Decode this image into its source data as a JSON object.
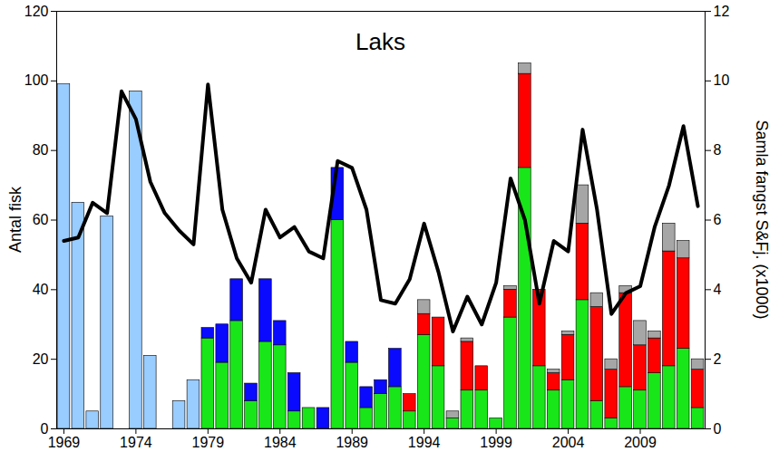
{
  "chart_data": {
    "type": "bar",
    "title": "Laks",
    "stacked": true,
    "ylabel": "Antal fisk",
    "y2label": "Samla fangst S&Fj. (x1000)",
    "x": [
      1969,
      1970,
      1971,
      1972,
      1973,
      1974,
      1975,
      1976,
      1977,
      1978,
      1979,
      1980,
      1981,
      1982,
      1983,
      1984,
      1985,
      1986,
      1987,
      1988,
      1989,
      1990,
      1991,
      1992,
      1993,
      1994,
      1995,
      1996,
      1997,
      1998,
      1999,
      2000,
      2001,
      2002,
      2003,
      2004,
      2005,
      2006,
      2007,
      2008,
      2009,
      2010,
      2011,
      2012,
      2013
    ],
    "xlim": [
      1968.5,
      2013.5
    ],
    "xticks": [
      1969,
      1974,
      1979,
      1984,
      1989,
      1994,
      1999,
      2004,
      2009
    ],
    "ylim": [
      0,
      120
    ],
    "yticks": [
      0,
      20,
      40,
      60,
      80,
      100,
      120
    ],
    "y2lim": [
      0,
      12
    ],
    "y2ticks": [
      0,
      2,
      4,
      6,
      8,
      10,
      12
    ],
    "series": [
      {
        "type": "bar",
        "color": "#99ccff",
        "values": [
          99,
          65,
          5,
          61,
          0,
          97,
          21,
          0,
          8,
          14,
          0,
          0,
          0,
          0,
          0,
          0,
          0,
          0,
          0,
          0,
          0,
          0,
          0,
          0,
          0,
          0,
          0,
          0,
          0,
          0,
          0,
          0,
          0,
          0,
          0,
          0,
          0,
          0,
          0,
          0,
          0,
          0,
          0,
          0,
          0
        ]
      },
      {
        "type": "bar",
        "color": "#19e619",
        "values": [
          0,
          0,
          0,
          0,
          0,
          0,
          0,
          0,
          0,
          0,
          26,
          19,
          31,
          8,
          25,
          24,
          5,
          6,
          0,
          60,
          19,
          6,
          10,
          12,
          5,
          27,
          18,
          3,
          11,
          11,
          3,
          32,
          75,
          18,
          11,
          14,
          37,
          8,
          3,
          12,
          11,
          16,
          18,
          23,
          6
        ]
      },
      {
        "type": "bar",
        "color": "#0a0aff",
        "values": [
          0,
          0,
          0,
          0,
          0,
          0,
          0,
          0,
          0,
          0,
          3,
          11,
          12,
          5,
          18,
          7,
          11,
          0,
          6,
          15,
          6,
          6,
          4,
          11,
          0,
          0,
          0,
          0,
          0,
          0,
          0,
          0,
          0,
          0,
          0,
          0,
          0,
          0,
          0,
          0,
          0,
          0,
          0,
          0,
          0
        ]
      },
      {
        "type": "bar",
        "color": "#ff0000",
        "values": [
          0,
          0,
          0,
          0,
          0,
          0,
          0,
          0,
          0,
          0,
          0,
          0,
          0,
          0,
          0,
          0,
          0,
          0,
          0,
          0,
          0,
          0,
          0,
          0,
          5,
          6,
          14,
          0,
          14,
          7,
          0,
          8,
          27,
          22,
          5,
          13,
          22,
          27,
          14,
          27,
          13,
          10,
          33,
          26,
          11
        ]
      },
      {
        "type": "bar",
        "color": "#a6a6a6",
        "values": [
          0,
          0,
          0,
          0,
          0,
          0,
          0,
          0,
          0,
          0,
          0,
          0,
          0,
          0,
          0,
          0,
          0,
          0,
          0,
          0,
          0,
          0,
          0,
          0,
          0,
          4,
          0,
          2,
          1,
          0,
          0,
          1,
          3,
          0,
          1,
          1,
          11,
          4,
          3,
          2,
          7,
          2,
          8,
          5,
          3
        ]
      },
      {
        "type": "line",
        "axis": "y2",
        "color": "#000000",
        "values": [
          5.4,
          5.5,
          6.5,
          6.2,
          9.7,
          8.9,
          7.1,
          6.2,
          5.7,
          5.3,
          9.9,
          6.3,
          4.9,
          4.2,
          6.3,
          5.5,
          5.8,
          5.1,
          4.9,
          7.7,
          7.5,
          6.3,
          3.7,
          3.6,
          4.3,
          5.9,
          4.5,
          2.8,
          3.8,
          3.0,
          4.2,
          7.2,
          6.0,
          3.6,
          5.4,
          5.1,
          8.6,
          6.3,
          3.3,
          3.9,
          4.1,
          5.8,
          7.0,
          8.7,
          6.4
        ]
      }
    ]
  }
}
